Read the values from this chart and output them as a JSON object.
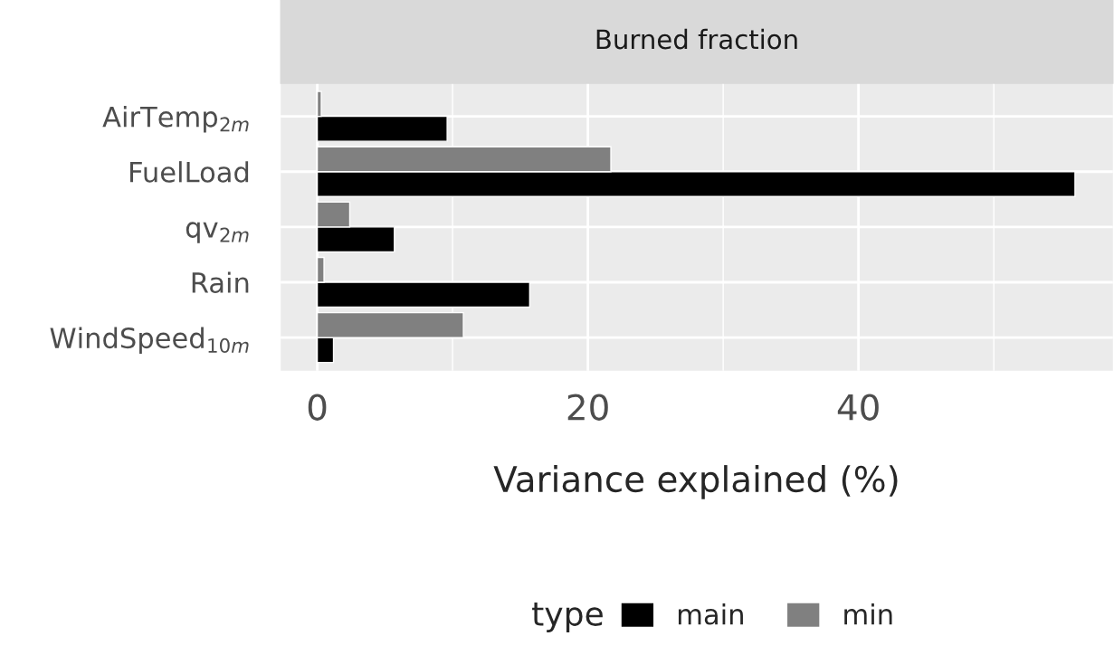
{
  "chart_data": {
    "type": "bar",
    "orientation": "horizontal",
    "title": "Burned fraction",
    "xlabel": "Variance explained (%)",
    "legend_title": "type",
    "categories": [
      "AirTemp$_{2m}$",
      "FuelLoad",
      "qv$_{2m}$",
      "Rain",
      "WindSpeed$_{10m}$"
    ],
    "series": [
      {
        "name": "main",
        "color": "#000000",
        "values": [
          9.6,
          56.0,
          5.7,
          15.7,
          1.2
        ]
      },
      {
        "name": "min",
        "color": "#808080",
        "values": [
          0.3,
          21.7,
          2.4,
          0.5,
          10.8
        ]
      }
    ],
    "xlim": [
      -2.7,
      58.8
    ],
    "xticks": [
      0,
      20,
      40
    ],
    "grid": true,
    "legend": "bottom"
  }
}
